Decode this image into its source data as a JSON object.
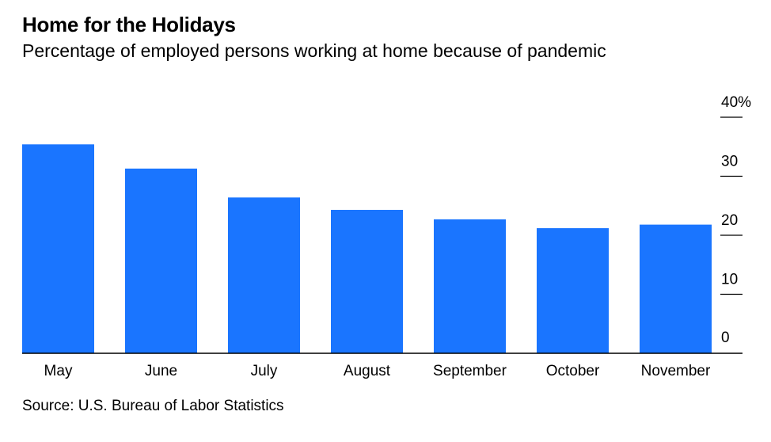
{
  "title": "Home for the Holidays",
  "subtitle": "Percentage of employed persons working at home because of pandemic",
  "source": "Source: U.S. Bureau of Labor Statistics",
  "colors": {
    "bar": "#1a75ff",
    "axis": "#000000",
    "text": "#000000"
  },
  "chart_data": {
    "type": "bar",
    "categories": [
      "May",
      "June",
      "July",
      "August",
      "September",
      "October",
      "November"
    ],
    "values": [
      35.4,
      31.3,
      26.4,
      24.3,
      22.7,
      21.2,
      21.8
    ],
    "title": "Home for the Holidays",
    "subtitle": "Percentage of employed persons working at home because of pandemic",
    "xlabel": "",
    "ylabel": "",
    "ylim": [
      0,
      40
    ],
    "yticks": [
      0,
      10,
      20,
      30,
      40
    ],
    "ytick_labels": [
      "0",
      "10",
      "20",
      "30",
      "40%"
    ],
    "y_axis_position": "right",
    "grid": false,
    "legend": "none"
  }
}
